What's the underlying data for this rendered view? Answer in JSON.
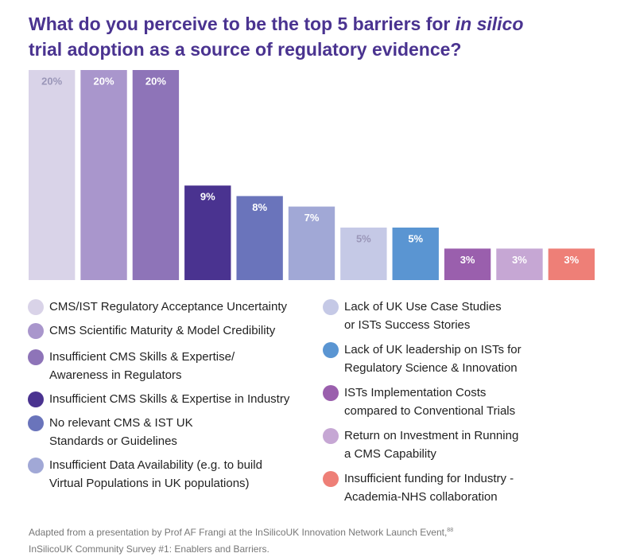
{
  "chart_data": {
    "type": "bar",
    "title": {
      "before": "What do you perceive to be the top 5 barriers for ",
      "emphasis": "in silico",
      "after": "trial adoption as a source of regulatory evidence?"
    },
    "categories": [
      "CMS/IST Regulatory Acceptance Uncertainty",
      "CMS Scientific Maturity & Model Credibility",
      "Insufficient CMS Skills & Expertise/\nAwareness in Regulators",
      "Insufficient CMS Skills & Expertise in Industry",
      "No relevant CMS & IST UK\nStandards or Guidelines",
      "Insufficient Data Availability (e.g. to build\nVirtual Populations in UK populations)",
      "Lack of UK Use Case Studies\nor ISTs Success Stories",
      "Lack of UK leadership on ISTs for\nRegulatory Science & Innovation",
      "ISTs Implementation Costs\ncompared to Conventional Trials",
      "Return on Investment in Running\na CMS Capability",
      "Insufficient funding for Industry -\nAcademia-NHS collaboration"
    ],
    "values": [
      20,
      20,
      20,
      9,
      8,
      7,
      5,
      5,
      3,
      3,
      3
    ],
    "value_labels": [
      "20%",
      "20%",
      "20%",
      "9%",
      "8%",
      "7%",
      "5%",
      "5%",
      "3%",
      "3%",
      "3%"
    ],
    "colors": [
      "#d9d3e8",
      "#a996cc",
      "#8e74b8",
      "#4a3390",
      "#6a74bb",
      "#a1a8d6",
      "#c5c9e6",
      "#5a95d2",
      "#9a5fad",
      "#c6a7d4",
      "#ee7f77"
    ],
    "source": {
      "line1": "Adapted from a presentation by Prof AF Frangi at the InSilicoUK Innovation Network Launch Event,",
      "superscript": "88",
      "line2": "InSilicoUK Community Survey #1: Enablers and Barriers."
    }
  }
}
